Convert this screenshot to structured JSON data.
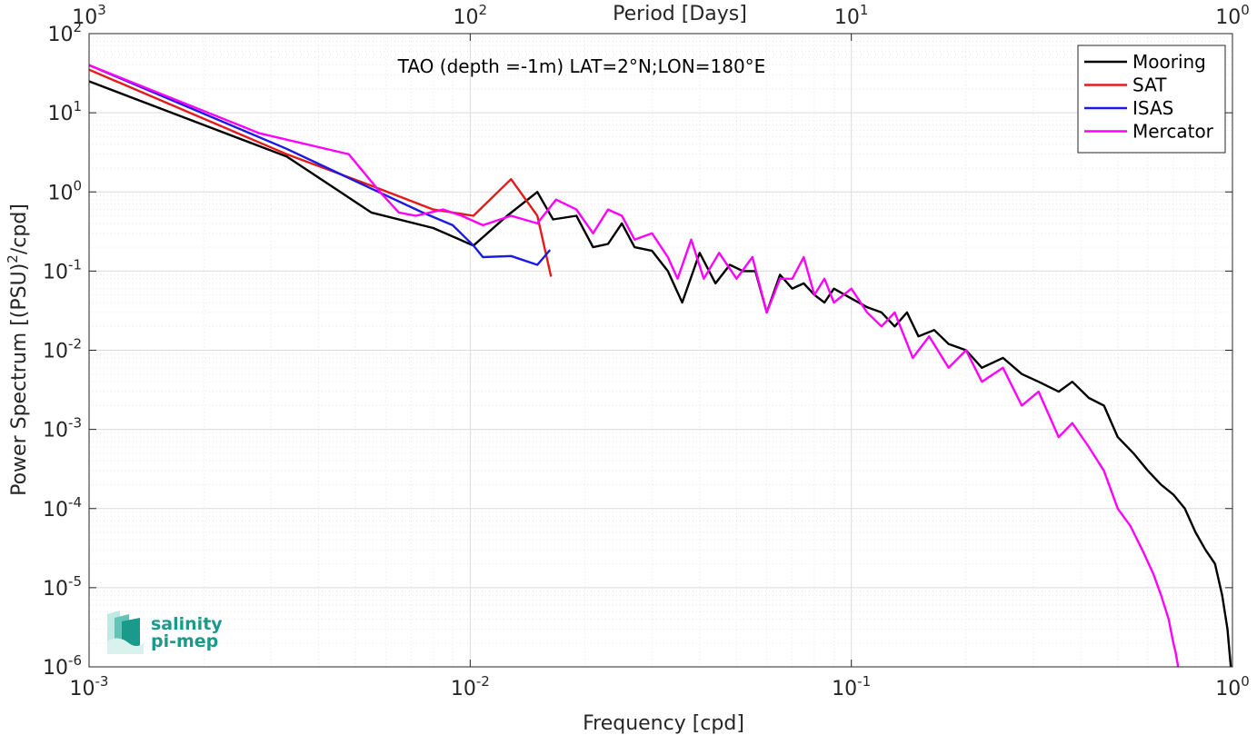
{
  "chart_data": {
    "type": "line",
    "scale": {
      "x": "log",
      "y": "log"
    },
    "xlim": [
      0.001,
      1
    ],
    "ylim": [
      1e-06,
      100
    ],
    "grid": true,
    "minor_grid": true,
    "xlabel": "Frequency [cpd]",
    "ylabel_main": "Power Spectrum [(PSU)",
    "ylabel_sup": "2",
    "ylabel_tail": "/cpd]",
    "top_axis_label": "Period [Days]",
    "annotation": "TAO (depth =-1m) LAT=2°N;LON=180°E",
    "legend_position": "top-right",
    "x_ticks": [
      {
        "value": 0.001,
        "base": "10",
        "exp": "-3"
      },
      {
        "value": 0.01,
        "base": "10",
        "exp": "-2"
      },
      {
        "value": 0.1,
        "base": "10",
        "exp": "-1"
      },
      {
        "value": 1,
        "base": "10",
        "exp": "0"
      }
    ],
    "top_ticks": [
      {
        "value": 0.001,
        "base": "10",
        "exp": "3"
      },
      {
        "value": 0.01,
        "base": "10",
        "exp": "2"
      },
      {
        "value": 0.1,
        "base": "10",
        "exp": "1"
      },
      {
        "value": 1,
        "base": "10",
        "exp": "0"
      }
    ],
    "y_ticks": [
      {
        "value": 100,
        "base": "10",
        "exp": "2"
      },
      {
        "value": 10,
        "base": "10",
        "exp": "1"
      },
      {
        "value": 1,
        "base": "10",
        "exp": "0"
      },
      {
        "value": 0.1,
        "base": "10",
        "exp": "-1"
      },
      {
        "value": 0.01,
        "base": "10",
        "exp": "-2"
      },
      {
        "value": 0.001,
        "base": "10",
        "exp": "-3"
      },
      {
        "value": 0.0001,
        "base": "10",
        "exp": "-4"
      },
      {
        "value": 1e-05,
        "base": "10",
        "exp": "-5"
      },
      {
        "value": 1e-06,
        "base": "10",
        "exp": "-6"
      }
    ],
    "series": [
      {
        "name": "Mooring",
        "color": "#000000",
        "x": [
          0.001,
          0.0033,
          0.0055,
          0.008,
          0.0102,
          0.0125,
          0.015,
          0.0165,
          0.019,
          0.021,
          0.023,
          0.025,
          0.027,
          0.03,
          0.033,
          0.036,
          0.04,
          0.044,
          0.048,
          0.052,
          0.056,
          0.06,
          0.065,
          0.07,
          0.075,
          0.08,
          0.085,
          0.09,
          0.1,
          0.11,
          0.12,
          0.13,
          0.14,
          0.15,
          0.165,
          0.18,
          0.2,
          0.22,
          0.25,
          0.28,
          0.31,
          0.35,
          0.38,
          0.42,
          0.46,
          0.5,
          0.55,
          0.6,
          0.65,
          0.7,
          0.75,
          0.8,
          0.85,
          0.9,
          0.94,
          0.97,
          0.99
        ],
        "y": [
          25,
          2.8,
          0.55,
          0.35,
          0.21,
          0.5,
          1.0,
          0.45,
          0.5,
          0.2,
          0.22,
          0.4,
          0.2,
          0.18,
          0.1,
          0.04,
          0.17,
          0.07,
          0.12,
          0.1,
          0.1,
          0.03,
          0.09,
          0.06,
          0.07,
          0.05,
          0.04,
          0.06,
          0.045,
          0.035,
          0.03,
          0.02,
          0.03,
          0.015,
          0.018,
          0.012,
          0.01,
          0.006,
          0.008,
          0.005,
          0.004,
          0.003,
          0.004,
          0.0025,
          0.002,
          0.0008,
          0.0005,
          0.0003,
          0.0002,
          0.00015,
          0.0001,
          5e-05,
          3e-05,
          2e-05,
          8e-06,
          3e-06,
          1e-06
        ]
      },
      {
        "name": "SAT",
        "color": "#e41a1a",
        "x": [
          0.001,
          0.0033,
          0.0055,
          0.008,
          0.0102,
          0.0128,
          0.015,
          0.0163
        ],
        "y": [
          35,
          3.0,
          1.2,
          0.6,
          0.5,
          1.45,
          0.5,
          0.085
        ]
      },
      {
        "name": "ISAS",
        "color": "#1a1ae6",
        "x": [
          0.001,
          0.0033,
          0.0055,
          0.0075,
          0.009,
          0.0102,
          0.0108,
          0.0128,
          0.015,
          0.0162
        ],
        "y": [
          40,
          3.5,
          1.1,
          0.55,
          0.38,
          0.21,
          0.15,
          0.155,
          0.12,
          0.185
        ]
      },
      {
        "name": "Mercator",
        "color": "#ff00ff",
        "x": [
          0.001,
          0.0028,
          0.0048,
          0.0058,
          0.0065,
          0.0072,
          0.0085,
          0.0095,
          0.0108,
          0.0128,
          0.015,
          0.0168,
          0.019,
          0.021,
          0.023,
          0.025,
          0.027,
          0.03,
          0.033,
          0.035,
          0.038,
          0.041,
          0.045,
          0.05,
          0.055,
          0.06,
          0.065,
          0.07,
          0.075,
          0.08,
          0.085,
          0.09,
          0.1,
          0.11,
          0.12,
          0.13,
          0.145,
          0.16,
          0.18,
          0.2,
          0.22,
          0.25,
          0.28,
          0.31,
          0.35,
          0.38,
          0.42,
          0.46,
          0.5,
          0.54,
          0.58,
          0.62,
          0.65,
          0.68,
          0.7,
          0.71,
          0.72
        ],
        "y": [
          40,
          5.5,
          3.0,
          1.0,
          0.55,
          0.5,
          0.6,
          0.5,
          0.38,
          0.5,
          0.4,
          0.8,
          0.6,
          0.3,
          0.6,
          0.5,
          0.25,
          0.3,
          0.15,
          0.08,
          0.25,
          0.08,
          0.17,
          0.08,
          0.15,
          0.03,
          0.08,
          0.08,
          0.15,
          0.05,
          0.08,
          0.04,
          0.06,
          0.03,
          0.02,
          0.03,
          0.008,
          0.015,
          0.006,
          0.01,
          0.004,
          0.006,
          0.002,
          0.003,
          0.0008,
          0.0012,
          0.0006,
          0.0003,
          0.0001,
          6e-05,
          3e-05,
          1.5e-05,
          8e-06,
          4e-06,
          2e-06,
          1.5e-06,
          1e-06
        ]
      }
    ]
  },
  "logo": {
    "line1": "salinity",
    "line2": "pi-mep"
  }
}
